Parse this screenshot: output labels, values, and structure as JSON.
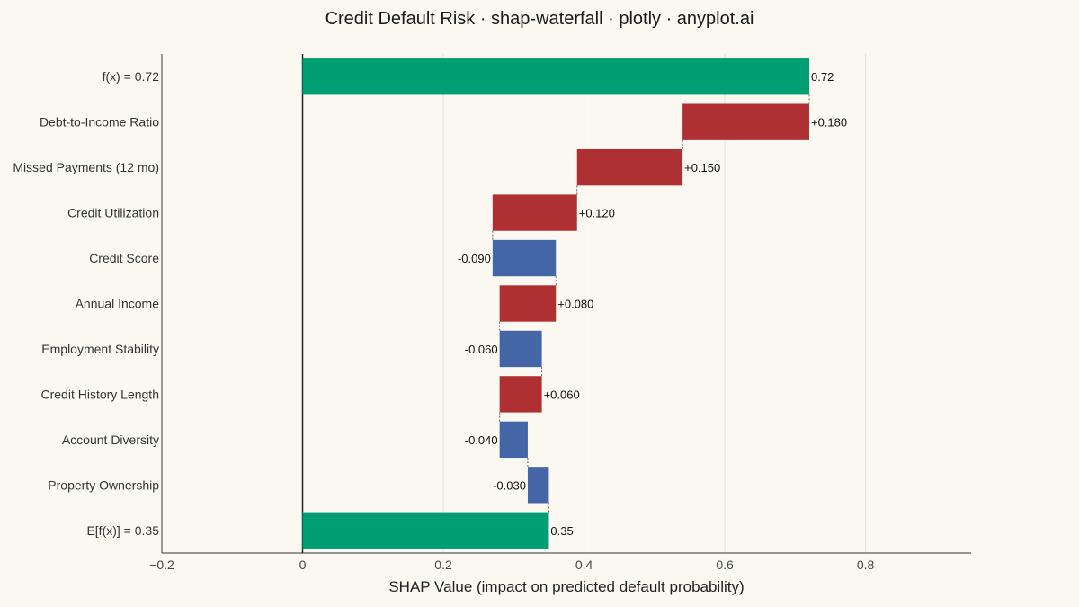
{
  "chart_data": {
    "type": "bar",
    "subtype": "shap-waterfall",
    "orientation": "horizontal",
    "title": "Credit Default Risk · shap-waterfall · plotly · anyplot.ai",
    "xlabel": "SHAP Value (impact on predicted default probability)",
    "ylabel": "",
    "xlim": [
      -0.2,
      0.95
    ],
    "xticks": [
      -0.2,
      0,
      0.2,
      0.4,
      0.6,
      0.8
    ],
    "xtick_labels": [
      "−0.2",
      "0",
      "0.2",
      "0.4",
      "0.6",
      "0.8"
    ],
    "grid": true,
    "legend": "none",
    "base_value": 0.35,
    "prediction": 0.72,
    "rows": [
      {
        "label": "f(x) = 0.72",
        "kind": "total",
        "start": 0,
        "end": 0.72,
        "text": "0.72"
      },
      {
        "label": "Debt-to-Income Ratio",
        "kind": "delta",
        "start": 0.54,
        "end": 0.72,
        "value": 0.18,
        "text": "+0.180"
      },
      {
        "label": "Missed Payments (12 mo)",
        "kind": "delta",
        "start": 0.39,
        "end": 0.54,
        "value": 0.15,
        "text": "+0.150"
      },
      {
        "label": "Credit Utilization",
        "kind": "delta",
        "start": 0.27,
        "end": 0.39,
        "value": 0.12,
        "text": "+0.120"
      },
      {
        "label": "Credit Score",
        "kind": "delta",
        "start": 0.36,
        "end": 0.27,
        "value": -0.09,
        "text": "-0.090"
      },
      {
        "label": "Annual Income",
        "kind": "delta",
        "start": 0.28,
        "end": 0.36,
        "value": 0.08,
        "text": "+0.080"
      },
      {
        "label": "Employment Stability",
        "kind": "delta",
        "start": 0.34,
        "end": 0.28,
        "value": -0.06,
        "text": "-0.060"
      },
      {
        "label": "Credit History Length",
        "kind": "delta",
        "start": 0.28,
        "end": 0.34,
        "value": 0.06,
        "text": "+0.060"
      },
      {
        "label": "Account Diversity",
        "kind": "delta",
        "start": 0.32,
        "end": 0.28,
        "value": -0.04,
        "text": "-0.040"
      },
      {
        "label": "Property Ownership",
        "kind": "delta",
        "start": 0.35,
        "end": 0.32,
        "value": -0.03,
        "text": "-0.030"
      },
      {
        "label": "E[f(x)] = 0.35",
        "kind": "total",
        "start": 0,
        "end": 0.35,
        "text": "0.35"
      }
    ],
    "colors": {
      "total": "#009E73",
      "positive": "#AE3032",
      "negative": "#4466A6",
      "grid": "#E2E0D8",
      "axis": "#333333",
      "connector": "#666666"
    }
  }
}
